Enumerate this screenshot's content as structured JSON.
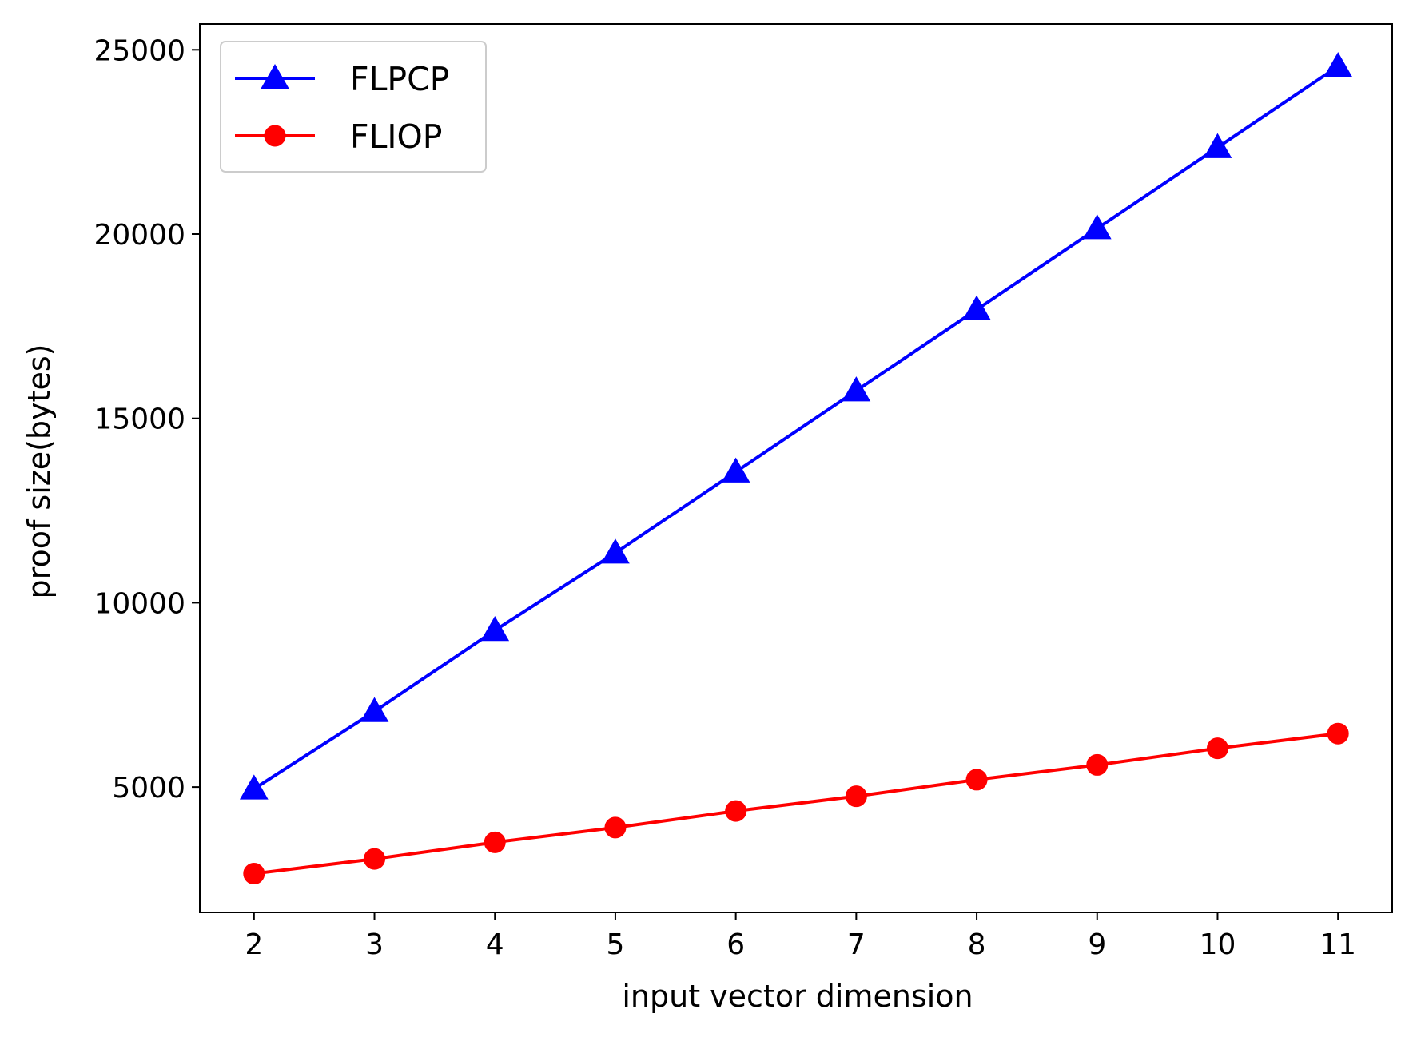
{
  "chart_data": {
    "type": "line",
    "x": [
      2,
      3,
      4,
      5,
      6,
      7,
      8,
      9,
      10,
      11
    ],
    "xlabel": "input vector dimension",
    "ylabel": "proof size(bytes)",
    "xlim": [
      1.55,
      11.45
    ],
    "ylim": [
      1600,
      25700
    ],
    "xticks": [
      2,
      3,
      4,
      5,
      6,
      7,
      8,
      9,
      10,
      11
    ],
    "yticks": [
      5000,
      10000,
      15000,
      20000,
      25000
    ],
    "grid": false,
    "legend_position": "upper-left",
    "series": [
      {
        "name": "FLPCP",
        "color": "#0000ff",
        "marker": "triangle",
        "values": [
          4950,
          7050,
          9250,
          11350,
          13550,
          15750,
          17950,
          20150,
          22350,
          24550
        ]
      },
      {
        "name": "FLIOP",
        "color": "#ff0000",
        "marker": "circle",
        "values": [
          2650,
          3050,
          3500,
          3900,
          4350,
          4750,
          5200,
          5600,
          6050,
          6450
        ]
      }
    ]
  }
}
